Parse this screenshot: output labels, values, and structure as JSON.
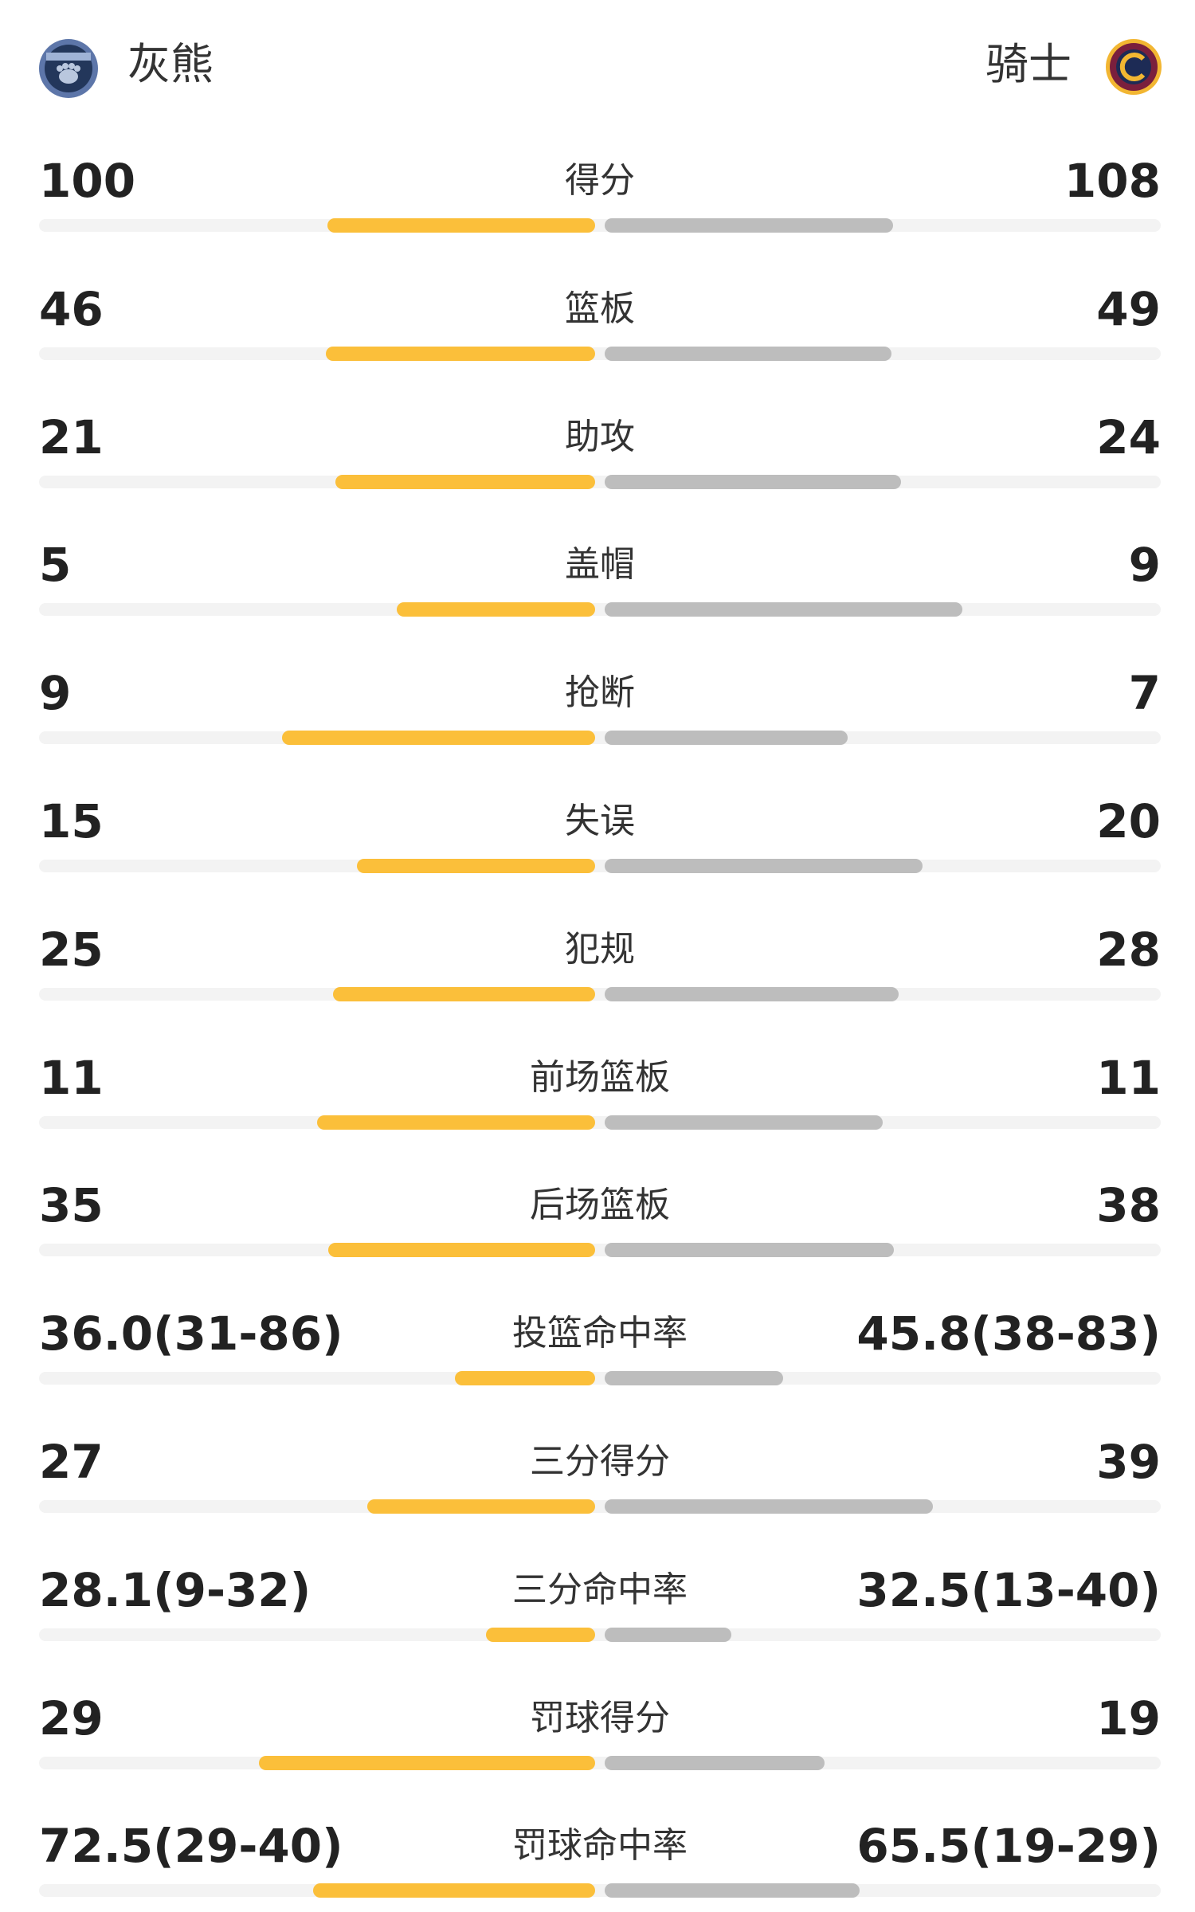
{
  "home": {
    "name": "灰熊"
  },
  "away": {
    "name": "骑士"
  },
  "rows": [
    {
      "label": "得分",
      "left": 100,
      "right": 108
    },
    {
      "label": "篮板",
      "left": 46,
      "right": 49
    },
    {
      "label": "助攻",
      "left": 21,
      "right": 24
    },
    {
      "label": "盖帽",
      "left": 5,
      "right": 9
    },
    {
      "label": "抢断",
      "left": 9,
      "right": 7
    },
    {
      "label": "失误",
      "left": 15,
      "right": 20
    },
    {
      "label": "犯规",
      "left": 25,
      "right": 28
    },
    {
      "label": "前场篮板",
      "left": 11,
      "right": 11
    },
    {
      "label": "后场篮板",
      "left": 35,
      "right": 38
    },
    {
      "label": "投篮命中率",
      "left": {
        "value": 36.0,
        "label": "36.0(31-86)"
      },
      "right": {
        "value": 45.8,
        "label": "45.8(38-83)"
      }
    },
    {
      "label": "三分得分",
      "left": 27,
      "right": 39
    },
    {
      "label": "三分命中率",
      "left": {
        "value": 28.1,
        "label": "28.1(9-32)"
      },
      "right": {
        "value": 32.5,
        "label": "32.5(13-40)"
      }
    },
    {
      "label": "罚球得分",
      "left": 29,
      "right": 19
    },
    {
      "label": "罚球命中率",
      "left": {
        "value": 72.5,
        "label": "72.5(29-40)"
      },
      "right": {
        "value": 65.5,
        "label": "65.5(19-29)"
      }
    }
  ]
}
